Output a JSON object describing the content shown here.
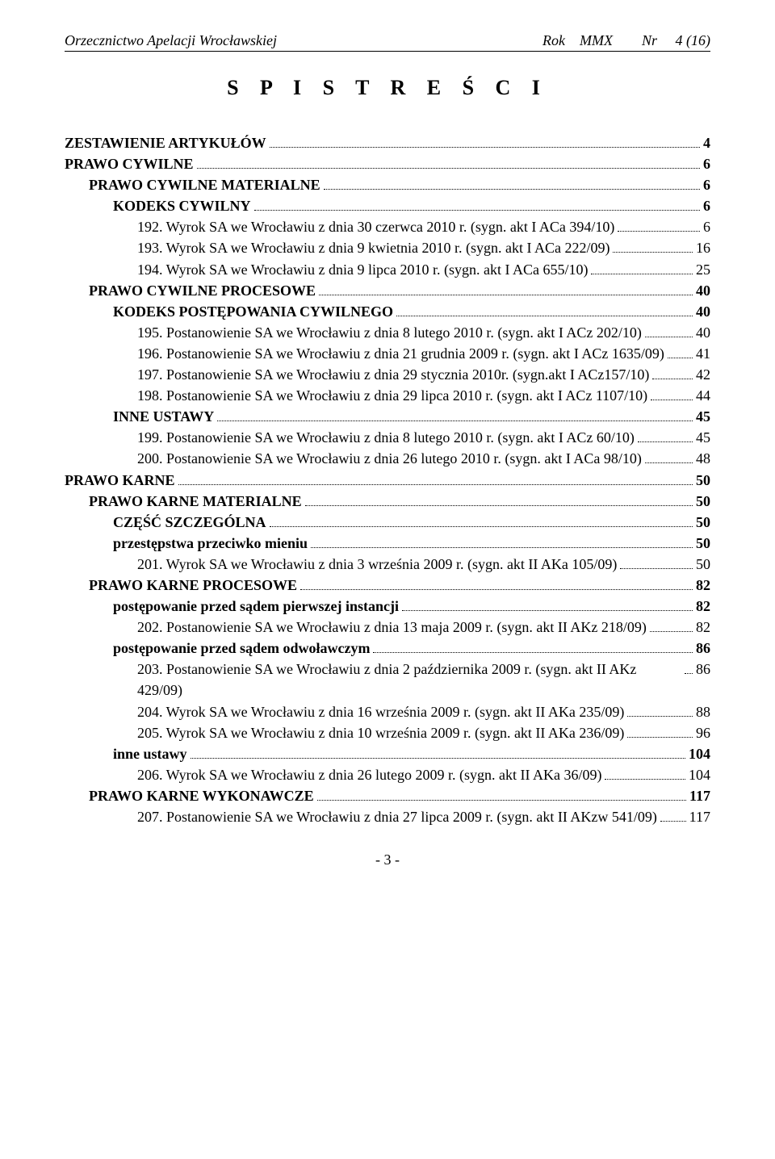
{
  "header": {
    "left": "Orzecznictwo Apelacji Wrocławskiej",
    "right": "Rok    MMX        Nr     4 (16)"
  },
  "title": "S P I S   T R E Ś C I",
  "toc": [
    {
      "label": "ZESTAWIENIE ARTYKUŁÓW",
      "page": "4",
      "indent": 0,
      "bold": true
    },
    {
      "label": "PRAWO CYWILNE",
      "page": "6",
      "indent": 0,
      "bold": true
    },
    {
      "label": "PRAWO CYWILNE MATERIALNE",
      "page": "6",
      "indent": 1,
      "bold": true
    },
    {
      "label": "KODEKS  CYWILNY",
      "page": "6",
      "indent": 2,
      "bold": true
    },
    {
      "label": "192. Wyrok SA we Wrocławiu z dnia 30 czerwca 2010 r. (sygn. akt I ACa 394/10)",
      "page": "6",
      "indent": 3,
      "bold": false
    },
    {
      "label": "193. Wyrok SA we Wrocławiu z dnia 9 kwietnia 2010 r. (sygn. akt I ACa 222/09)",
      "page": "16",
      "indent": 3,
      "bold": false
    },
    {
      "label": "194. Wyrok SA we Wrocławiu z dnia 9 lipca 2010 r. (sygn. akt I ACa 655/10)",
      "page": "25",
      "indent": 3,
      "bold": false
    },
    {
      "label": "PRAWO CYWILNE PROCESOWE",
      "page": "40",
      "indent": 1,
      "bold": true
    },
    {
      "label": "KODEKS  POSTĘPOWANIA CYWILNEGO",
      "page": "40",
      "indent": 2,
      "bold": true
    },
    {
      "label": "195. Postanowienie SA we Wrocławiu z dnia 8 lutego 2010 r. (sygn. akt I ACz 202/10)",
      "page": "40",
      "indent": 3,
      "bold": false
    },
    {
      "label": "196. Postanowienie SA we Wrocławiu z dnia 21 grudnia 2009 r. (sygn. akt I ACz 1635/09)",
      "page": "41",
      "indent": 3,
      "bold": false
    },
    {
      "label": "197. Postanowienie SA we Wrocławiu z dnia 29 stycznia 2010r. (sygn.akt I ACz157/10)",
      "page": "42",
      "indent": 3,
      "bold": false
    },
    {
      "label": "198. Postanowienie SA we Wrocławiu z dnia 29 lipca 2010 r. (sygn. akt I ACz 1107/10)",
      "page": "44",
      "indent": 3,
      "bold": false
    },
    {
      "label": "INNE USTAWY",
      "page": "45",
      "indent": 2,
      "bold": true
    },
    {
      "label": "199. Postanowienie SA we Wrocławiu z dnia 8 lutego 2010 r. (sygn. akt I ACz 60/10)",
      "page": "45",
      "indent": 3,
      "bold": false
    },
    {
      "label": "200. Postanowienie SA we Wrocławiu z dnia 26 lutego 2010 r. (sygn. akt I ACa 98/10)",
      "page": "48",
      "indent": 3,
      "bold": false
    },
    {
      "label": "PRAWO  KARNE",
      "page": "50",
      "indent": 0,
      "bold": true
    },
    {
      "label": "PRAWO KARNE MATERIALNE",
      "page": "50",
      "indent": 1,
      "bold": true
    },
    {
      "label": "CZĘŚĆ SZCZEGÓLNA",
      "page": "50",
      "indent": 2,
      "bold": true
    },
    {
      "label": "przestępstwa przeciwko mieniu",
      "page": "50",
      "indent": 2,
      "bold": true
    },
    {
      "label": "201. Wyrok SA we Wrocławiu z dnia 3 września 2009 r. (sygn. akt II AKa 105/09)",
      "page": "50",
      "indent": 3,
      "bold": false
    },
    {
      "label": "PRAWO KARNE PROCESOWE",
      "page": "82",
      "indent": 1,
      "bold": true
    },
    {
      "label": "postępowanie przed sądem pierwszej instancji",
      "page": "82",
      "indent": 2,
      "bold": true
    },
    {
      "label": "202. Postanowienie SA we Wrocławiu z dnia 13 maja 2009 r. (sygn. akt II AKz 218/09)",
      "page": "82",
      "indent": 3,
      "bold": false
    },
    {
      "label": "postępowanie przed sądem odwoławczym",
      "page": "86",
      "indent": 2,
      "bold": true
    },
    {
      "label": "203. Postanowienie SA we Wrocławiu z dnia 2 października 2009 r. (sygn. akt II AKz 429/09)",
      "page": "86",
      "indent": 3,
      "bold": false
    },
    {
      "label": "204. Wyrok SA we Wrocławiu z dnia 16 września 2009 r. (sygn. akt II AKa 235/09)",
      "page": "88",
      "indent": 3,
      "bold": false
    },
    {
      "label": "205. Wyrok SA we Wrocławiu z dnia 10 września 2009 r. (sygn. akt II AKa 236/09)",
      "page": "96",
      "indent": 3,
      "bold": false
    },
    {
      "label": "inne ustawy",
      "page": "104",
      "indent": 2,
      "bold": true
    },
    {
      "label": "206. Wyrok SA we Wrocławiu z dnia 26 lutego 2009 r. (sygn. akt II AKa 36/09)",
      "page": "104",
      "indent": 3,
      "bold": false
    },
    {
      "label": "PRAWO KARNE WYKONAWCZE",
      "page": "117",
      "indent": 1,
      "bold": true
    },
    {
      "label": "207. Postanowienie SA we Wrocławiu z dnia 27 lipca 2009 r. (sygn. akt II AKzw 541/09)",
      "page": "117",
      "indent": 3,
      "bold": false
    }
  ],
  "footer": "- 3 -"
}
